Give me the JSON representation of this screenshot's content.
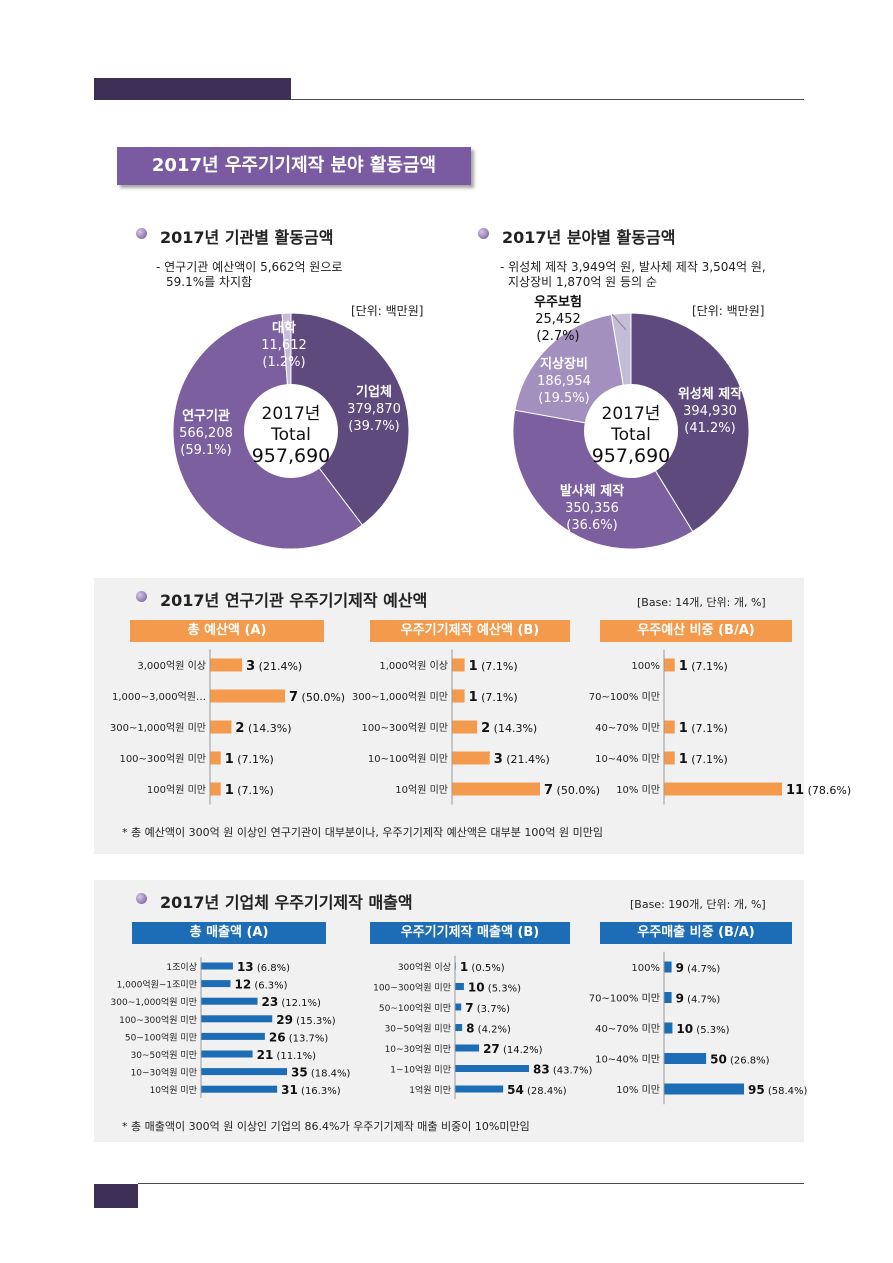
{
  "section_title": "2017년 우주기기제작 분야 활동금액",
  "left_pie": {
    "heading": "2017년 기관별 활동금액",
    "note_lines": [
      "- 연구기관 예산액이 5,662억 원으로",
      "59.1%를 차지함"
    ],
    "unit": "[단위: 백만원]",
    "center": [
      "2017년",
      "Total",
      "957,690"
    ]
  },
  "right_pie": {
    "heading": "2017년 분야별 활동금액",
    "note_lines": [
      "- 위성체 제작 3,949억 원, 발사체 제작 3,504억 원,",
      "지상장비 1,870억 원 등의 순"
    ],
    "unit": "[단위: 백만원]",
    "center": [
      "2017년",
      "Total",
      "957,690"
    ]
  },
  "panel1": {
    "heading": "2017년 연구기관 우주기기제작 예산액",
    "base": "[Base: 14개, 단위: 개, %]",
    "footnote": "* 총 예산액이 300억 원 이상인 연구기관이 대부분이나, 우주기기제작 예산액은 대부분 100억 원 미만임"
  },
  "panel2": {
    "heading": "2017년 기업체 우주기기제작 매출액",
    "base": "[Base: 190개, 단위: 개, %]",
    "footnote": "* 총 매출액이 300억 원 이상인 기업의 86.4%가 우주기기제작 매출 비중이 10%미만임"
  },
  "colors": {
    "purple_dark": "#5e4a7d",
    "purple_mid": "#7c5f9e",
    "purple_light": "#a390be",
    "purple_pale": "#c7bcd7",
    "orange": "#f39a4d",
    "blue": "#1c6db5"
  },
  "chart_data": [
    {
      "type": "pie",
      "id": "pie1",
      "slices": [
        {
          "label": "기업체",
          "value": 379870,
          "pct": "39.7%",
          "value_text": "379,870",
          "color": "#5e4a7d"
        },
        {
          "label": "연구기관",
          "value": 566208,
          "pct": "59.1%",
          "value_text": "566,208",
          "color": "#7c5f9e"
        },
        {
          "label": "대학",
          "value": 11612,
          "pct": "1.2%",
          "value_text": "11,612",
          "color": "#c7bcd7"
        }
      ]
    },
    {
      "type": "pie",
      "id": "pie2",
      "slices": [
        {
          "label": "위성체 제작",
          "value": 394930,
          "pct": "41.2%",
          "value_text": "394,930",
          "color": "#5e4a7d"
        },
        {
          "label": "발사체 제작",
          "value": 350356,
          "pct": "36.6%",
          "value_text": "350,356",
          "color": "#7c5f9e"
        },
        {
          "label": "지상장비",
          "value": 186954,
          "pct": "19.5%",
          "value_text": "186,954",
          "color": "#a390be"
        },
        {
          "label": "우주보험",
          "value": 25452,
          "pct": "2.7%",
          "value_text": "25,452",
          "color": "#c7bcd7"
        }
      ]
    },
    {
      "type": "bar",
      "id": "p1a",
      "title": "총 예산액 (A)",
      "color": "#f39a4d",
      "categories": [
        "3,000억원 이상",
        "1,000~3,000억원…",
        "300~1,000억원 미만",
        "100~300억원 미만",
        "100억원 미만"
      ],
      "values": [
        3,
        7,
        2,
        1,
        1
      ],
      "pct": [
        "21.4%",
        "50.0%",
        "14.3%",
        "7.1%",
        "7.1%"
      ]
    },
    {
      "type": "bar",
      "id": "p1b",
      "title": "우주기기제작 예산액 (B)",
      "color": "#f39a4d",
      "categories": [
        "1,000억원 이상",
        "300~1,000억원 미만",
        "100~300억원 미만",
        "10~100억원 미만",
        "10억원 미만"
      ],
      "values": [
        1,
        1,
        2,
        3,
        7
      ],
      "pct": [
        "7.1%",
        "7.1%",
        "14.3%",
        "21.4%",
        "50.0%"
      ]
    },
    {
      "type": "bar",
      "id": "p1c",
      "title": "우주예산 비중 (B/A)",
      "color": "#f39a4d",
      "categories": [
        "100%",
        "70~100% 미만",
        "40~70% 미만",
        "10~40% 미만",
        "10% 미만"
      ],
      "values": [
        1,
        null,
        1,
        1,
        11
      ],
      "pct": [
        "7.1%",
        null,
        "7.1%",
        "7.1%",
        "78.6%"
      ]
    },
    {
      "type": "bar",
      "id": "p2a",
      "title": "총 매출액 (A)",
      "color": "#1c6db5",
      "categories": [
        "1조이상",
        "1,000억원~1조미만",
        "300~1,000억원 미만",
        "100~300억원 미만",
        "50~100억원 미만",
        "30~50억원 미만",
        "10~30억원 미만",
        "10억원 미만"
      ],
      "values": [
        13,
        12,
        23,
        29,
        26,
        21,
        35,
        31
      ],
      "pct": [
        "6.8%",
        "6.3%",
        "12.1%",
        "15.3%",
        "13.7%",
        "11.1%",
        "18.4%",
        "16.3%"
      ]
    },
    {
      "type": "bar",
      "id": "p2b",
      "title": "우주기기제작 매출액 (B)",
      "color": "#1c6db5",
      "categories": [
        "300억원 이상",
        "100~300억원 미만",
        "50~100억원 미만",
        "30~50억원 미만",
        "10~30억원 미만",
        "1~10억원 미만",
        "1억원 미만"
      ],
      "values": [
        1,
        10,
        7,
        8,
        27,
        83,
        54
      ],
      "pct": [
        "0.5%",
        "5.3%",
        "3.7%",
        "4.2%",
        "14.2%",
        "43.7%",
        "28.4%"
      ]
    },
    {
      "type": "bar",
      "id": "p2c",
      "title": "우주매출 비중 (B/A)",
      "color": "#1c6db5",
      "categories": [
        "100%",
        "70~100% 미만",
        "40~70% 미만",
        "10~40% 미만",
        "10% 미만"
      ],
      "values": [
        9,
        9,
        10,
        50,
        95
      ],
      "pct": [
        "4.7%",
        "4.7%",
        "5.3%",
        "26.8%",
        "58.4%"
      ]
    }
  ]
}
